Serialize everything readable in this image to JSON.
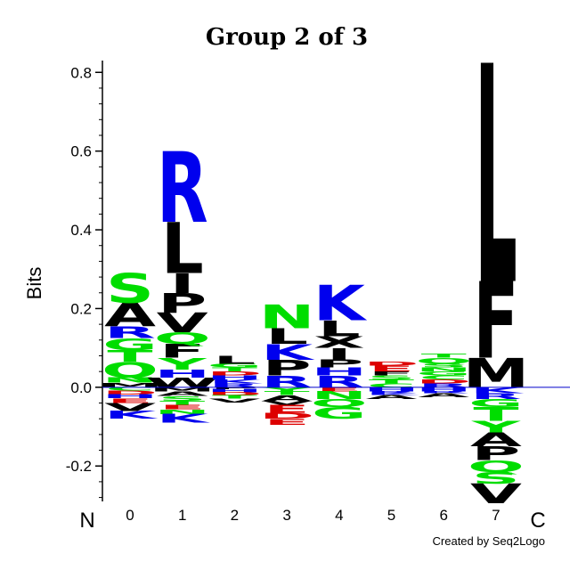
{
  "chart_data": {
    "type": "sequence-logo",
    "title": "Group 2 of 3",
    "ylabel": "Bits",
    "ylim": [
      -0.29,
      0.83
    ],
    "yticks": [
      {
        "value": 0.8,
        "label": "0.8"
      },
      {
        "value": 0.6,
        "label": "0.6"
      },
      {
        "value": 0.4,
        "label": "0.4"
      },
      {
        "value": 0.2,
        "label": "0.2"
      },
      {
        "value": 0.0,
        "label": "0.0"
      },
      {
        "value": -0.2,
        "label": "-0.2"
      }
    ],
    "n_terminus_label": "N",
    "c_terminus_label": "C",
    "credit": "Created by Seq2Logo",
    "colors": {
      "S": "#00dd00",
      "T": "#00dd00",
      "Q": "#00dd00",
      "G": "#00dd00",
      "N": "#00dd00",
      "Y": "#00dd00",
      "C": "#00dd00",
      "R": "#0000ee",
      "K": "#0000ee",
      "H": "#0000ee",
      "D": "#dd0000",
      "E": "#dd0000",
      "A": "#000000",
      "V": "#000000",
      "L": "#000000",
      "I": "#000000",
      "P": "#000000",
      "F": "#000000",
      "M": "#000000",
      "W": "#000000",
      "X": "#000000",
      "baseline": "#0000cc"
    },
    "positions": [
      {
        "label": "0",
        "positive": [
          [
            "M",
            0.012
          ],
          [
            "N",
            0.013
          ],
          [
            "Q",
            0.04
          ],
          [
            "T",
            0.03
          ],
          [
            "G",
            0.03
          ],
          [
            "R",
            0.03
          ],
          [
            "A",
            0.06
          ],
          [
            "S",
            0.075
          ]
        ],
        "negative": [
          [
            "C",
            0.008
          ],
          [
            "D",
            0.01
          ],
          [
            "H",
            0.01
          ],
          [
            "E",
            0.012
          ],
          [
            "V",
            0.02
          ],
          [
            "K",
            0.02
          ]
        ]
      },
      {
        "label": "1",
        "positive": [
          [
            "W",
            0.025
          ],
          [
            "H",
            0.02
          ],
          [
            "Y",
            0.03
          ],
          [
            "F",
            0.035
          ],
          [
            "Q",
            0.03
          ],
          [
            "V",
            0.05
          ],
          [
            "P",
            0.05
          ],
          [
            "I",
            0.05
          ],
          [
            "L",
            0.13
          ],
          [
            "R",
            0.18
          ]
        ],
        "negative": [
          [
            "M",
            0.01
          ],
          [
            "A",
            0.012
          ],
          [
            "S",
            0.012
          ],
          [
            "T",
            0.01
          ],
          [
            "E",
            0.012
          ],
          [
            "N",
            0.012
          ],
          [
            "K",
            0.022
          ]
        ]
      },
      {
        "label": "2",
        "positive": [
          [
            "R",
            0.01
          ],
          [
            "K",
            0.01
          ],
          [
            "H",
            0.01
          ],
          [
            "D",
            0.01
          ],
          [
            "T",
            0.01
          ],
          [
            "G",
            0.01
          ],
          [
            "L",
            0.02
          ]
        ],
        "negative": [
          [
            "P",
            0.005
          ],
          [
            "H",
            0.008
          ],
          [
            "D",
            0.008
          ],
          [
            "T",
            0.008
          ],
          [
            "V",
            0.01
          ]
        ]
      },
      {
        "label": "3",
        "positive": [
          [
            "R",
            0.03
          ],
          [
            "P",
            0.04
          ],
          [
            "K",
            0.04
          ],
          [
            "L",
            0.04
          ],
          [
            "N",
            0.06
          ]
        ],
        "negative": [
          [
            "Y",
            0.01
          ],
          [
            "T",
            0.01
          ],
          [
            "A",
            0.015
          ],
          [
            "V",
            0.01
          ],
          [
            "E",
            0.02
          ],
          [
            "D",
            0.015
          ],
          [
            "E",
            0.015
          ]
        ]
      },
      {
        "label": "4",
        "positive": [
          [
            "R",
            0.03
          ],
          [
            "H",
            0.02
          ],
          [
            "P",
            0.02
          ],
          [
            "I",
            0.03
          ],
          [
            "X",
            0.03
          ],
          [
            "L",
            0.04
          ],
          [
            "K",
            0.09
          ]
        ],
        "negative": [
          [
            "E",
            0.01
          ],
          [
            "N",
            0.02
          ],
          [
            "Q",
            0.02
          ],
          [
            "G",
            0.03
          ]
        ]
      },
      {
        "label": "5",
        "positive": [
          [
            "C",
            0.01
          ],
          [
            "T",
            0.01
          ],
          [
            "S",
            0.01
          ],
          [
            "F",
            0.01
          ],
          [
            "E",
            0.015
          ],
          [
            "D",
            0.01
          ]
        ],
        "negative": [
          [
            "H",
            0.01
          ],
          [
            "R",
            0.005
          ],
          [
            "K",
            0.005
          ],
          [
            "A",
            0.01
          ]
        ]
      },
      {
        "label": "6",
        "positive": [
          [
            "R",
            0.01
          ],
          [
            "D",
            0.01
          ],
          [
            "C",
            0.01
          ],
          [
            "G",
            0.01
          ],
          [
            "N",
            0.01
          ],
          [
            "S",
            0.01
          ],
          [
            "Q",
            0.015
          ],
          [
            "T",
            0.01
          ]
        ],
        "negative": [
          [
            "H",
            0.01
          ],
          [
            "R",
            0.005
          ],
          [
            "A",
            0.01
          ]
        ]
      },
      {
        "label": "7",
        "positive": [
          [
            "M",
            0.075
          ],
          [
            "F",
            0.195
          ],
          [
            "L",
            0.555
          ]
        ],
        "negative": [
          [
            "K",
            0.015
          ],
          [
            "R",
            0.015
          ],
          [
            "G",
            0.02
          ],
          [
            "T",
            0.035
          ],
          [
            "Y",
            0.03
          ],
          [
            "A",
            0.035
          ],
          [
            "P",
            0.035
          ],
          [
            "Q",
            0.03
          ],
          [
            "S",
            0.03
          ],
          [
            "V",
            0.05
          ]
        ]
      }
    ]
  }
}
